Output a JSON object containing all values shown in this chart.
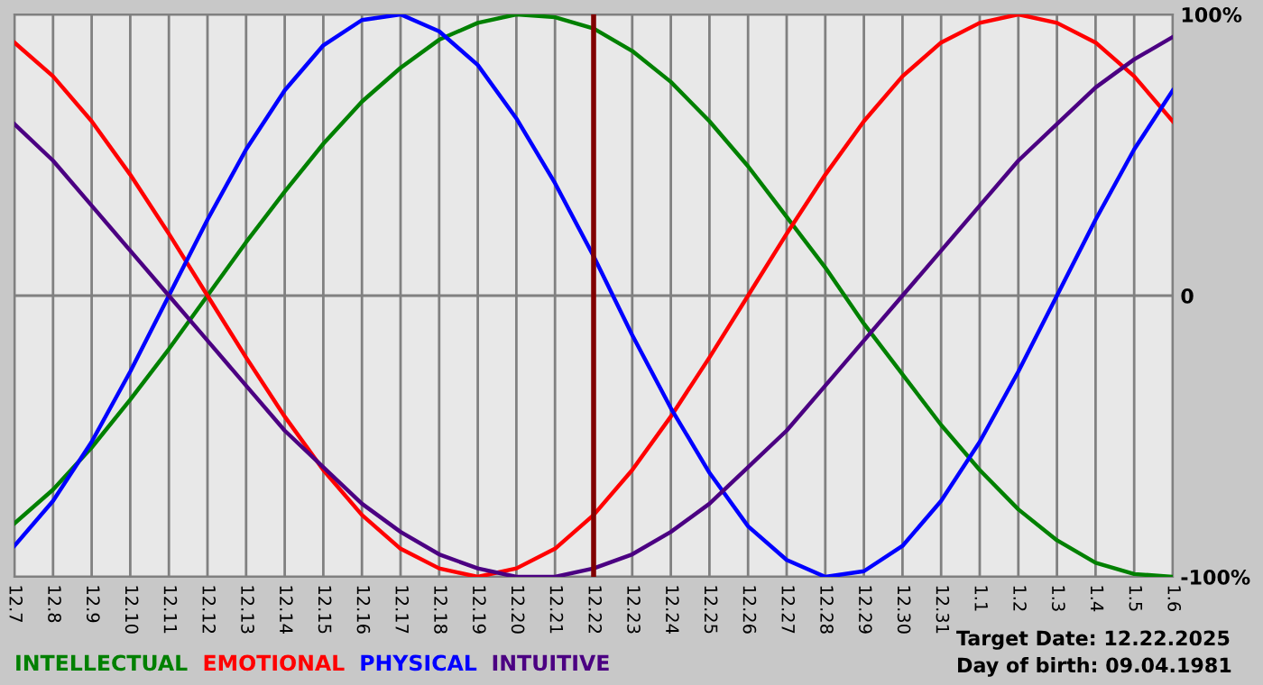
{
  "chart_data": {
    "type": "line",
    "categories": [
      "12.7",
      "12.8",
      "12.9",
      "12.10",
      "12.11",
      "12.12",
      "12.13",
      "12.14",
      "12.15",
      "12.16",
      "12.17",
      "12.18",
      "12.19",
      "12.20",
      "12.21",
      "12.22",
      "12.23",
      "12.24",
      "12.25",
      "12.26",
      "12.27",
      "12.28",
      "12.29",
      "12.30",
      "12.31",
      "1.1",
      "1.2",
      "1.3",
      "1.4",
      "1.5",
      "1.6"
    ],
    "series": [
      {
        "name": "INTELLECTUAL",
        "color": "#008000",
        "values": [
          -81,
          -69,
          -54,
          -37,
          -19,
          0,
          19,
          37,
          54,
          69,
          81,
          91,
          97,
          100,
          99,
          95,
          87,
          76,
          62,
          46,
          28,
          10,
          -10,
          -28,
          -46,
          -62,
          -76,
          -87,
          -95,
          -99,
          -100
        ]
      },
      {
        "name": "EMOTIONAL",
        "color": "#ff0000",
        "values": [
          90,
          78,
          62,
          43,
          22,
          0,
          -22,
          -43,
          -62,
          -78,
          -90,
          -97,
          -100,
          -97,
          -90,
          -78,
          -62,
          -43,
          -22,
          0,
          22,
          43,
          62,
          78,
          90,
          97,
          100,
          97,
          90,
          78,
          62
        ]
      },
      {
        "name": "PHYSICAL",
        "color": "#0000ff",
        "values": [
          -89,
          -73,
          -52,
          -27,
          0,
          27,
          52,
          73,
          89,
          98,
          100,
          94,
          82,
          63,
          40,
          14,
          -14,
          -40,
          -63,
          -82,
          -94,
          -100,
          -98,
          -89,
          -73,
          -52,
          -27,
          0,
          27,
          52,
          73
        ]
      },
      {
        "name": "INTUITIVE",
        "color": "#4b0082",
        "values": [
          61,
          48,
          32,
          16,
          0,
          -16,
          -32,
          -48,
          -61,
          -74,
          -84,
          -92,
          -97,
          -100,
          -100,
          -97,
          -92,
          -84,
          -74,
          -61,
          -48,
          -32,
          -16,
          0,
          16,
          32,
          48,
          61,
          74,
          84,
          92
        ]
      }
    ],
    "ylim": [
      -100,
      100
    ],
    "yticks": [
      {
        "value": -100,
        "label": "-100%"
      },
      0,
      {
        "value": 100,
        "label": "100%"
      }
    ],
    "ref_lines": [
      {
        "axis": "x",
        "value": "12.22",
        "color": "#800000"
      }
    ],
    "annotations": [
      "Target Date: 12.22.2025",
      "Day of birth: 09.04.1981"
    ],
    "grid": true,
    "legend": "bottom left",
    "marker": "none",
    "line_style": "solid"
  }
}
